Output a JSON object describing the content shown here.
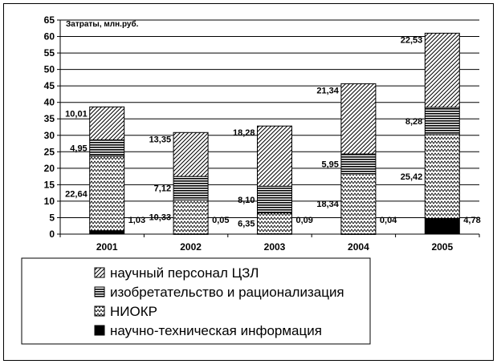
{
  "chart_data": {
    "type": "bar",
    "stacked": true,
    "title": "",
    "ylabel": "Затраты, млн.руб.",
    "xlabel": "",
    "ylim": [
      0,
      65
    ],
    "yticks": [
      "0",
      "5",
      "10",
      "15",
      "20",
      "25",
      "30",
      "35",
      "40",
      "45",
      "50",
      "55",
      "60",
      "65"
    ],
    "grid": true,
    "legend_position": "bottom",
    "categories": [
      "2001",
      "2002",
      "2003",
      "2004",
      "2005"
    ],
    "series": [
      {
        "name": "научно-техническая информация",
        "pattern": "solid",
        "values": [
          1.03,
          0.05,
          0.09,
          0.04,
          4.78
        ],
        "labels": [
          "1,03",
          "0,05",
          "0,09",
          "0,04",
          "4,78"
        ]
      },
      {
        "name": "НИОКР",
        "pattern": "zigzag",
        "values": [
          22.64,
          10.33,
          6.35,
          18.34,
          25.42
        ],
        "labels": [
          "22,64",
          "10,33",
          "6,35",
          "18,34",
          "25,42"
        ]
      },
      {
        "name": "изобретательство и рационализация",
        "pattern": "horizontal",
        "values": [
          4.95,
          7.12,
          8.1,
          5.95,
          8.28
        ],
        "labels": [
          "4,95",
          "7,12",
          "8,10",
          "5,95",
          "8,28"
        ]
      },
      {
        "name": "научный персонал ЦЗЛ",
        "pattern": "diagonal",
        "values": [
          10.01,
          13.35,
          18.28,
          21.34,
          22.53
        ],
        "labels": [
          "10,01",
          "13,35",
          "18,28",
          "21,34",
          "22,53"
        ]
      }
    ],
    "legend_order": [
      3,
      2,
      1,
      0
    ],
    "colors": {
      "fill": "#000000",
      "background": "#ffffff",
      "grid": "#000000"
    }
  }
}
